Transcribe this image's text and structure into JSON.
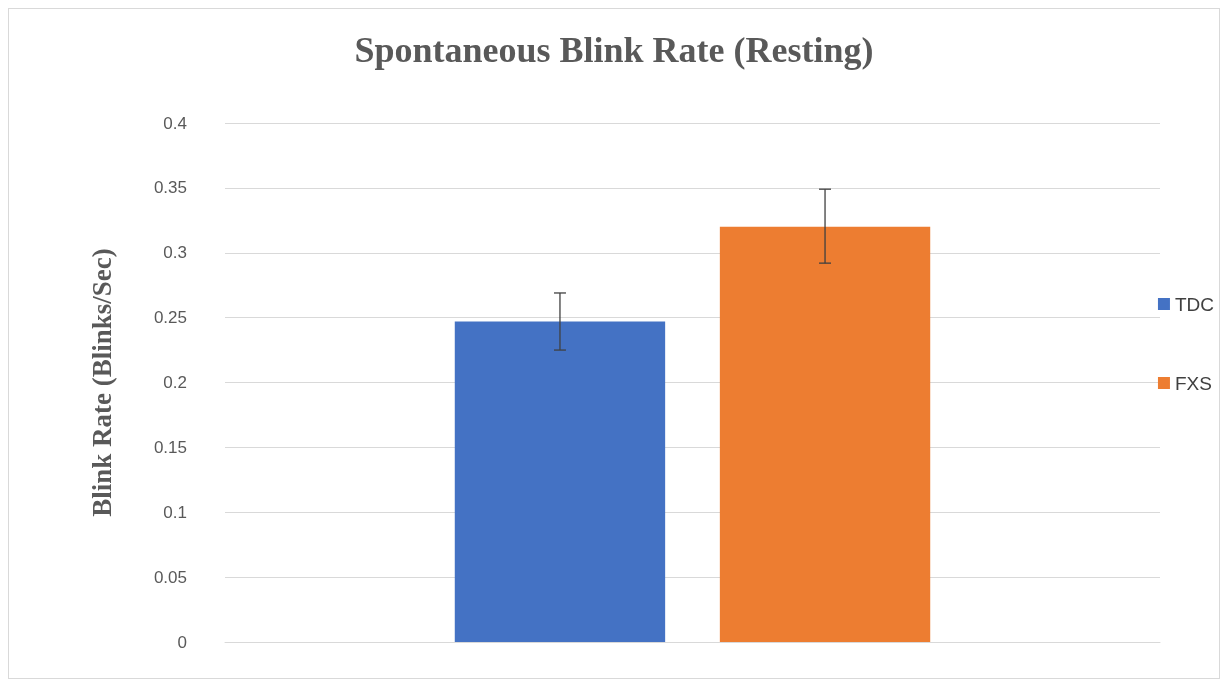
{
  "chart_data": {
    "type": "bar",
    "title": "Spontaneous Blink Rate (Resting)",
    "ylabel": "Blink Rate (Blinks/Sec)",
    "categories": [
      null
    ],
    "series": [
      {
        "name": "TDC",
        "color": "#4472c4",
        "values": [
          0.247
        ],
        "errors": [
          [
            0.225,
            0.269
          ]
        ]
      },
      {
        "name": "FXS",
        "color": "#ed7d31",
        "values": [
          0.32
        ],
        "errors": [
          [
            0.292,
            0.349
          ]
        ]
      }
    ],
    "ylim": [
      0,
      0.4
    ],
    "yticks": [
      0,
      0.05,
      0.1,
      0.15,
      0.2,
      0.25,
      0.3,
      0.35,
      0.4
    ],
    "grid": "y",
    "legend": "right"
  }
}
